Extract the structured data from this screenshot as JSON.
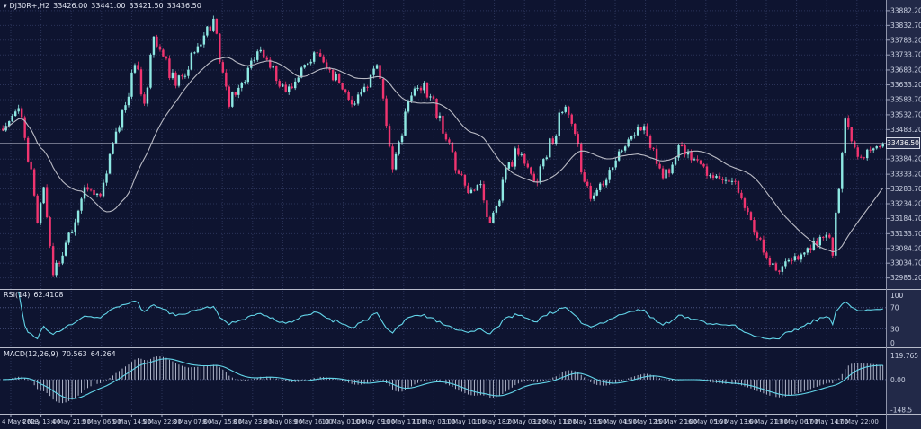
{
  "header": {
    "window_marker": "▾",
    "symbol": "DJ30R+,H2",
    "open": "33426.00",
    "high": "33441.00",
    "low": "33421.50",
    "close": "33436.50"
  },
  "indicator_labels": {
    "rsi_name": "RSI(14)",
    "rsi_value": "62.4108",
    "macd_name": "MACD(12,26,9)",
    "macd_value": "70.563",
    "macd_signal_value": "64.264"
  },
  "price_axis": {
    "current": "33436.50",
    "ticks": [
      "33882.20",
      "33832.70",
      "33783.20",
      "33733.70",
      "33683.20",
      "33633.20",
      "33583.70",
      "33532.70",
      "33483.20",
      "33384.20",
      "33333.20",
      "33283.70",
      "33234.20",
      "33184.70",
      "33133.70",
      "33084.20",
      "33034.70",
      "32985.20"
    ]
  },
  "rsi_axis": {
    "ticks": [
      100,
      70,
      30,
      0
    ],
    "level_lines": [
      70,
      30
    ]
  },
  "macd_axis": {
    "ticks": [
      {
        "label": "119.765",
        "value": 119.765
      },
      {
        "label": "0.00",
        "value": 0
      },
      {
        "label": "-148.5",
        "value": -148.5
      }
    ]
  },
  "time_axis": [
    "4 May 2023",
    "4 May 13:00",
    "4 May 21:00",
    "5 May 06:00",
    "5 May 14:00",
    "5 May 22:00",
    "8 May 07:00",
    "8 May 15:00",
    "8 May 23:00",
    "9 May 08:00",
    "9 May 16:00",
    "10 May 01:00",
    "10 May 09:00",
    "10 May 17:00",
    "11 May 02:00",
    "11 May 10:00",
    "11 May 18:00",
    "12 May 03:00",
    "12 May 11:00",
    "12 May 19:00",
    "15 May 04:00",
    "15 May 12:00",
    "15 May 20:00",
    "16 May 05:00",
    "16 May 13:00",
    "16 May 21:00",
    "17 May 06:00",
    "17 May 14:00",
    "17 May 22:00"
  ],
  "chart_data": {
    "type": "candlestick",
    "symbol": "DJ30R+",
    "timeframe": "H2",
    "title": "DJ30R+,H2 33426.00 33441.00 33421.50 33436.50",
    "current_bar": {
      "open": 33426.0,
      "high": 33441.0,
      "low": 33421.5,
      "close": 33436.5
    },
    "bars_visible": 281,
    "ylim": [
      32960,
      33900
    ],
    "x_range": [
      "4 May 2023 00:00",
      "17 May 2023 22:00"
    ],
    "price_path_anchors": [
      [
        0,
        33480
      ],
      [
        5,
        33555
      ],
      [
        9,
        33350
      ],
      [
        11,
        33170
      ],
      [
        13,
        33290
      ],
      [
        16,
        32995
      ],
      [
        19,
        33060
      ],
      [
        26,
        33290
      ],
      [
        31,
        33260
      ],
      [
        42,
        33700
      ],
      [
        45,
        33570
      ],
      [
        48,
        33795
      ],
      [
        55,
        33630
      ],
      [
        67,
        33855
      ],
      [
        72,
        33560
      ],
      [
        78,
        33690
      ],
      [
        82,
        33750
      ],
      [
        90,
        33610
      ],
      [
        100,
        33740
      ],
      [
        107,
        33640
      ],
      [
        112,
        33570
      ],
      [
        119,
        33700
      ],
      [
        124,
        33350
      ],
      [
        129,
        33580
      ],
      [
        134,
        33640
      ],
      [
        141,
        33450
      ],
      [
        148,
        33270
      ],
      [
        152,
        33300
      ],
      [
        155,
        33170
      ],
      [
        163,
        33420
      ],
      [
        169,
        33310
      ],
      [
        179,
        33560
      ],
      [
        187,
        33250
      ],
      [
        199,
        33450
      ],
      [
        204,
        33495
      ],
      [
        210,
        33320
      ],
      [
        215,
        33430
      ],
      [
        225,
        33330
      ],
      [
        232,
        33310
      ],
      [
        240,
        33120
      ],
      [
        246,
        33010
      ],
      [
        255,
        33070
      ],
      [
        262,
        33130
      ],
      [
        264,
        33060
      ],
      [
        268,
        33520
      ],
      [
        273,
        33390
      ],
      [
        277,
        33420
      ],
      [
        280,
        33436.5
      ]
    ],
    "moving_average": {
      "type": "SMA",
      "period": 26,
      "description": "grey smoothed line over price"
    },
    "indicators": [
      {
        "name": "RSI",
        "period": 14,
        "current": 62.4108,
        "range": [
          0,
          100
        ],
        "level_lines": [
          30,
          70
        ]
      },
      {
        "name": "MACD",
        "params": [
          12,
          26,
          9
        ],
        "current": 70.563,
        "signal_current": 64.264,
        "axis_max_label": 119.765,
        "axis_min_label": -148.5,
        "render_range": [
          -160,
          150
        ]
      }
    ],
    "legend_position": "none",
    "grid": "dotted"
  },
  "colors": {
    "background": "#0e1430",
    "axis_bg": "#222948",
    "grid": "#2b3359",
    "level_line": "#4a5380",
    "separator": "#b7bbca",
    "bull_candle": "#8ee9e3",
    "bear_candle": "#f0346f",
    "ma_line": "#b9bac4",
    "indicator_line": "#62d4e8",
    "macd_histogram": "#c3c9dc",
    "axis_text": "#cdd3e4",
    "current_price_line": "#cdd1df",
    "price_tag_bg": "#2c3352",
    "price_tag_border": "#d5d9e6"
  }
}
